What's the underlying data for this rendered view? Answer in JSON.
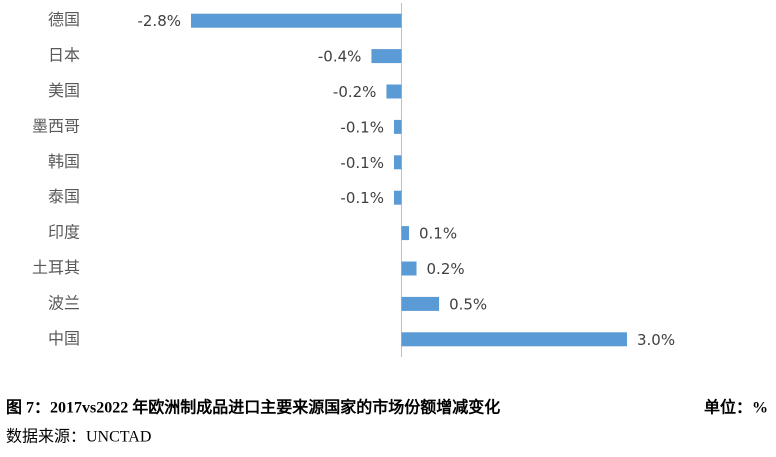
{
  "chart_data": {
    "type": "bar",
    "orientation": "horizontal",
    "title": "图 7：2017vs2022 年欧洲制成品进口主要来源国家的市场份额增减变化",
    "unit_label": "单位：%",
    "source": "数据来源：UNCTAD",
    "categories": [
      "德国",
      "日本",
      "美国",
      "墨西哥",
      "韩国",
      "泰国",
      "印度",
      "土耳其",
      "波兰",
      "中国"
    ],
    "values": [
      -2.8,
      -0.4,
      -0.2,
      -0.1,
      -0.1,
      -0.1,
      0.1,
      0.2,
      0.5,
      3.0
    ],
    "value_labels": [
      "-2.8%",
      "-0.4%",
      "-0.2%",
      "-0.1%",
      "-0.1%",
      "-0.1%",
      "0.1%",
      "0.2%",
      "0.5%",
      "3.0%"
    ],
    "color": "#5b9bd5"
  }
}
